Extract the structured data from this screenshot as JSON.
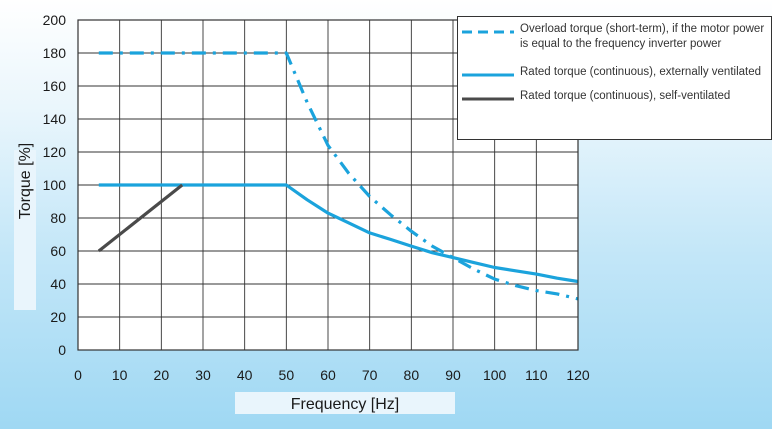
{
  "chart_data": {
    "type": "line",
    "xlabel": "Frequency [Hz]",
    "ylabel": "Torque [%]",
    "xlim": [
      0,
      120
    ],
    "ylim": [
      0,
      200
    ],
    "x_ticks": [
      "0",
      "10",
      "20",
      "30",
      "40",
      "50",
      "60",
      "70",
      "80",
      "90",
      "100",
      "110",
      "120"
    ],
    "y_ticks": [
      "0",
      "20",
      "40",
      "60",
      "80",
      "100",
      "120",
      "140",
      "160",
      "180",
      "200"
    ],
    "grid": true,
    "legend_position": "top-right",
    "series": [
      {
        "name": "Overload torque (short-term), if the motor power is equal to the frequency inverter power",
        "style": "dash-dot",
        "color": "#1ba3dc",
        "points": [
          [
            5,
            180
          ],
          [
            50,
            180
          ],
          [
            55,
            150
          ],
          [
            60,
            124
          ],
          [
            65,
            107
          ],
          [
            70,
            93
          ],
          [
            75,
            82
          ],
          [
            80,
            72
          ],
          [
            85,
            63
          ],
          [
            90,
            56
          ],
          [
            95,
            49
          ],
          [
            100,
            43
          ],
          [
            105,
            39
          ],
          [
            110,
            36
          ],
          [
            115,
            34
          ],
          [
            120,
            31
          ]
        ]
      },
      {
        "name": "Rated torque (continuous), externally ventilated",
        "style": "solid",
        "color": "#1ba3dc",
        "points": [
          [
            5,
            100
          ],
          [
            50,
            100
          ],
          [
            55,
            91
          ],
          [
            60,
            83
          ],
          [
            65,
            77
          ],
          [
            70,
            71
          ],
          [
            75,
            67
          ],
          [
            80,
            63
          ],
          [
            85,
            59
          ],
          [
            90,
            56
          ],
          [
            95,
            53
          ],
          [
            100,
            50
          ],
          [
            105,
            48
          ],
          [
            110,
            46
          ],
          [
            115,
            43.5
          ],
          [
            120,
            41.5
          ]
        ]
      },
      {
        "name": "Rated torque (continuous), self-ventilated",
        "style": "solid",
        "color": "#4a4a4a",
        "points": [
          [
            5,
            60
          ],
          [
            25,
            100
          ]
        ]
      }
    ]
  }
}
